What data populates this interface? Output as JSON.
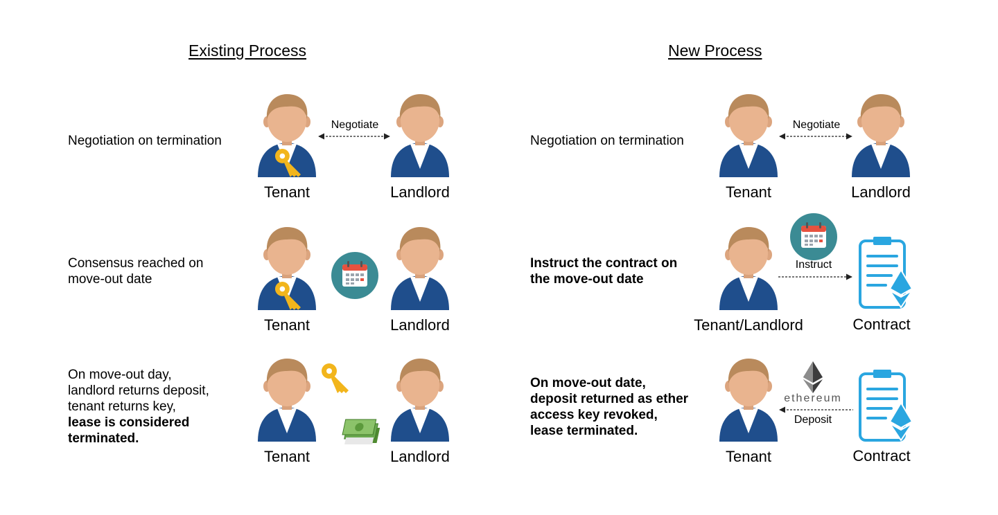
{
  "existing": {
    "title": "Existing Process",
    "steps": [
      {
        "desc": [
          "Negotiation on termination"
        ],
        "arrow_label": "Negotiate",
        "left_role": "Tenant",
        "right_role": "Landlord"
      },
      {
        "desc": [
          "Consensus reached on",
          "move-out date"
        ],
        "left_role": "Tenant",
        "right_role": "Landlord"
      },
      {
        "desc": [
          "On move-out day,",
          "landlord returns deposit,",
          "tenant returns key,"
        ],
        "desc_bold": [
          "lease is considered",
          "terminated."
        ],
        "left_role": "Tenant",
        "right_role": "Landlord"
      }
    ]
  },
  "new": {
    "title": "New Process",
    "steps": [
      {
        "desc": [
          "Negotiation on termination"
        ],
        "arrow_label": "Negotiate",
        "left_role": "Tenant",
        "right_role": "Landlord"
      },
      {
        "desc_bold": [
          "Instruct the contract on",
          "the move-out date"
        ],
        "arrow_label": "Instruct",
        "left_role": "Tenant/Landlord",
        "right_role": "Contract"
      },
      {
        "desc_bold": [
          "On move-out date,",
          "deposit returned as ether",
          "access key revoked,",
          "lease terminated."
        ],
        "brand_label": "ethereum",
        "arrow_label": "Deposit",
        "left_role": "Tenant",
        "right_role": "Contract"
      }
    ]
  },
  "colors": {
    "suit": "#1f4e8c",
    "hair": "#b98a5c",
    "skin": "#e9b48f",
    "key": "#f2b51c",
    "calendar_bg": "#3b8b94",
    "calendar_red": "#e6523f",
    "contract": "#2aa6e0",
    "money": "#5c9a3c"
  }
}
